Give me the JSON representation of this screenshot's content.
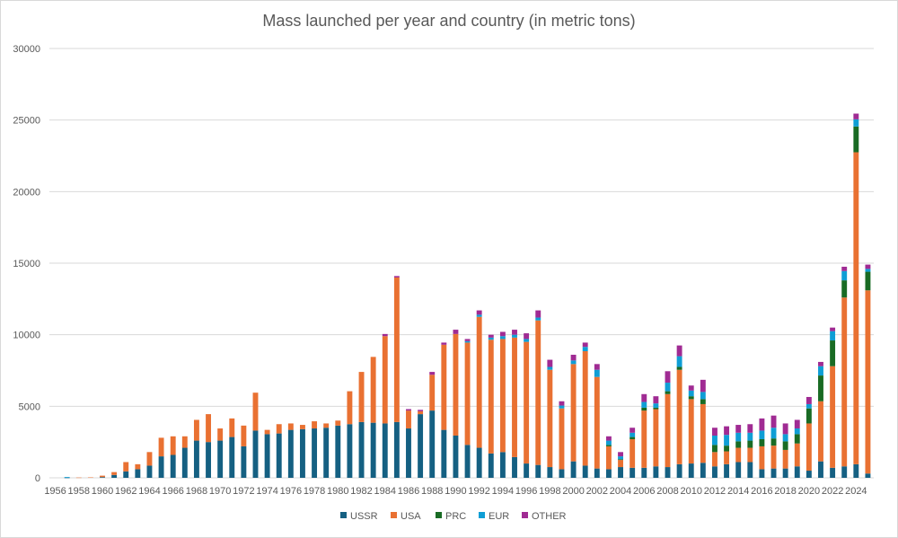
{
  "chart_data": {
    "type": "bar",
    "stacked": true,
    "title": "Mass launched per year and country (in metric tons)",
    "xlabel": "",
    "ylabel": "",
    "ylim": [
      0,
      30000
    ],
    "yticks": [
      0,
      5000,
      10000,
      15000,
      20000,
      25000,
      30000
    ],
    "grid": true,
    "legend_position": "bottom",
    "categories": [
      "1956",
      "1957",
      "1958",
      "1959",
      "1960",
      "1961",
      "1962",
      "1963",
      "1964",
      "1965",
      "1966",
      "1967",
      "1968",
      "1969",
      "1970",
      "1971",
      "1972",
      "1973",
      "1974",
      "1975",
      "1976",
      "1977",
      "1978",
      "1979",
      "1980",
      "1981",
      "1982",
      "1983",
      "1984",
      "1985",
      "1986",
      "1987",
      "1988",
      "1989",
      "1990",
      "1991",
      "1992",
      "1993",
      "1994",
      "1995",
      "1996",
      "1997",
      "1998",
      "1999",
      "2000",
      "2001",
      "2002",
      "2003",
      "2004",
      "2005",
      "2006",
      "2007",
      "2008",
      "2009",
      "2010",
      "2011",
      "2012",
      "2013",
      "2014",
      "2015",
      "2016",
      "2017",
      "2018",
      "2019",
      "2020",
      "2021",
      "2022",
      "2023",
      "2024",
      "2025"
    ],
    "tick_labels": [
      "1956",
      "1958",
      "1960",
      "1962",
      "1964",
      "1966",
      "1968",
      "1970",
      "1972",
      "1974",
      "1976",
      "1978",
      "1980",
      "1982",
      "1984",
      "1986",
      "1988",
      "1990",
      "1992",
      "1994",
      "1996",
      "1998",
      "2000",
      "2002",
      "2004",
      "2006",
      "2008",
      "2010",
      "2012",
      "2014",
      "2016",
      "2018",
      "2020",
      "2022",
      "2024"
    ],
    "series": [
      {
        "name": "USSR",
        "color": "#156082",
        "values": [
          0,
          10,
          0,
          0,
          50,
          200,
          450,
          600,
          850,
          1500,
          1600,
          2100,
          2600,
          2500,
          2600,
          2850,
          2200,
          3300,
          3050,
          3100,
          3350,
          3400,
          3450,
          3500,
          3650,
          3750,
          3900,
          3850,
          3800,
          3900,
          3450,
          4450,
          4700,
          3350,
          2950,
          2300,
          2100,
          1700,
          1800,
          1450,
          1000,
          900,
          750,
          600,
          1150,
          850,
          650,
          600,
          750,
          700,
          700,
          800,
          750,
          950,
          1000,
          1050,
          800,
          950,
          1100,
          1100,
          600,
          650,
          650,
          800,
          500,
          1150,
          700,
          800,
          950,
          300
        ]
      },
      {
        "name": "USA",
        "color": "#E97132",
        "values": [
          0,
          0,
          20,
          30,
          100,
          200,
          650,
          350,
          950,
          1300,
          1300,
          800,
          1450,
          1950,
          850,
          1300,
          1450,
          2650,
          300,
          650,
          450,
          300,
          500,
          300,
          350,
          2300,
          3500,
          4600,
          6100,
          10100,
          1250,
          200,
          2500,
          5950,
          7100,
          7150,
          9150,
          7950,
          7900,
          8350,
          8500,
          10100,
          6800,
          4250,
          6800,
          8000,
          6400,
          1600,
          500,
          2000,
          4000,
          4000,
          5100,
          6600,
          4500,
          4100,
          1000,
          900,
          1000,
          1000,
          1600,
          1600,
          1300,
          1600,
          3300,
          4200,
          7100,
          11800,
          21800,
          12800
        ]
      },
      {
        "name": "PRC",
        "color": "#196B24",
        "values": [
          0,
          0,
          0,
          0,
          0,
          0,
          0,
          0,
          0,
          0,
          0,
          0,
          0,
          0,
          0,
          0,
          0,
          0,
          0,
          0,
          0,
          0,
          0,
          0,
          0,
          0,
          0,
          0,
          0,
          0,
          0,
          0,
          0,
          0,
          0,
          0,
          0,
          0,
          0,
          0,
          0,
          0,
          0,
          0,
          0,
          0,
          0,
          100,
          50,
          150,
          200,
          100,
          200,
          200,
          200,
          350,
          500,
          400,
          450,
          500,
          500,
          500,
          600,
          650,
          1050,
          1800,
          1800,
          1200,
          1800,
          1300
        ]
      },
      {
        "name": "EUR",
        "color": "#0F9ED5",
        "values": [
          0,
          50,
          0,
          0,
          0,
          0,
          0,
          0,
          0,
          0,
          0,
          0,
          0,
          0,
          0,
          0,
          0,
          0,
          0,
          0,
          0,
          0,
          0,
          0,
          0,
          0,
          0,
          0,
          0,
          0,
          0,
          0,
          0,
          0,
          0,
          100,
          150,
          150,
          200,
          200,
          200,
          200,
          200,
          200,
          250,
          300,
          500,
          300,
          200,
          300,
          400,
          300,
          600,
          750,
          400,
          500,
          650,
          750,
          600,
          550,
          600,
          750,
          500,
          400,
          300,
          650,
          650,
          650,
          500,
          200
        ]
      },
      {
        "name": "OTHER",
        "color": "#A02B93",
        "values": [
          0,
          0,
          0,
          0,
          0,
          0,
          0,
          0,
          0,
          0,
          0,
          0,
          0,
          0,
          0,
          0,
          0,
          0,
          0,
          0,
          0,
          0,
          0,
          0,
          0,
          0,
          0,
          0,
          150,
          100,
          100,
          100,
          200,
          150,
          300,
          150,
          300,
          200,
          300,
          350,
          400,
          500,
          500,
          300,
          400,
          300,
          400,
          300,
          300,
          350,
          550,
          500,
          800,
          750,
          350,
          850,
          550,
          600,
          550,
          600,
          850,
          850,
          750,
          600,
          500,
          300,
          250,
          300,
          400,
          300
        ]
      }
    ]
  }
}
